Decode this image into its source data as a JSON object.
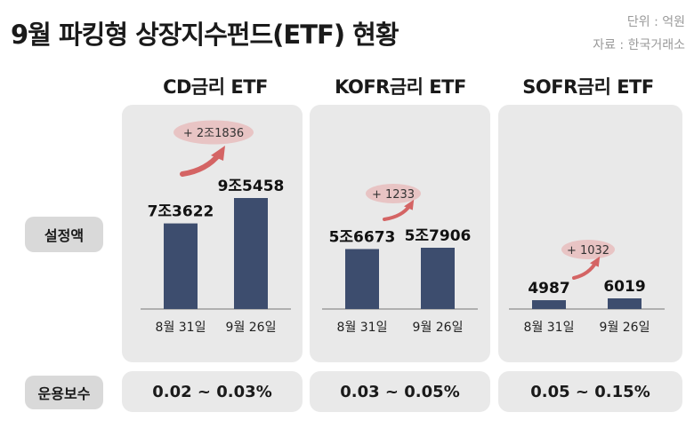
{
  "title": "9월 파킹형 상장지수펀드(ETF) 현황",
  "unit": "단위 : 억원",
  "source": "자료 : 한국거래소",
  "row_labels": {
    "amount": "설정액",
    "fee": "운용보수"
  },
  "colors": {
    "bar": "#3d4d6e",
    "panel": "#e9e9e9",
    "arrow": "#d46464",
    "pill": "#e8c4c4"
  },
  "chart_data": [
    {
      "type": "bar",
      "title": "CD금리 ETF",
      "categories": [
        "8월 31일",
        "9월 26일"
      ],
      "values": [
        73622,
        95458
      ],
      "value_labels": [
        "7조3622",
        "9조5458"
      ],
      "change_label": "+ 2조1836",
      "fee": "0.02 ~ 0.03%"
    },
    {
      "type": "bar",
      "title": "KOFR금리 ETF",
      "categories": [
        "8월 31일",
        "9월 26일"
      ],
      "values": [
        56673,
        57906
      ],
      "value_labels": [
        "5조6673",
        "5조7906"
      ],
      "change_label": "+ 1233",
      "fee": "0.03 ~ 0.05%"
    },
    {
      "type": "bar",
      "title": "SOFR금리 ETF",
      "categories": [
        "8월 31일",
        "9월 26일"
      ],
      "values": [
        4987,
        6019
      ],
      "value_labels": [
        "4987",
        "6019"
      ],
      "change_label": "+ 1032",
      "fee": "0.05 ~ 0.15%"
    }
  ]
}
